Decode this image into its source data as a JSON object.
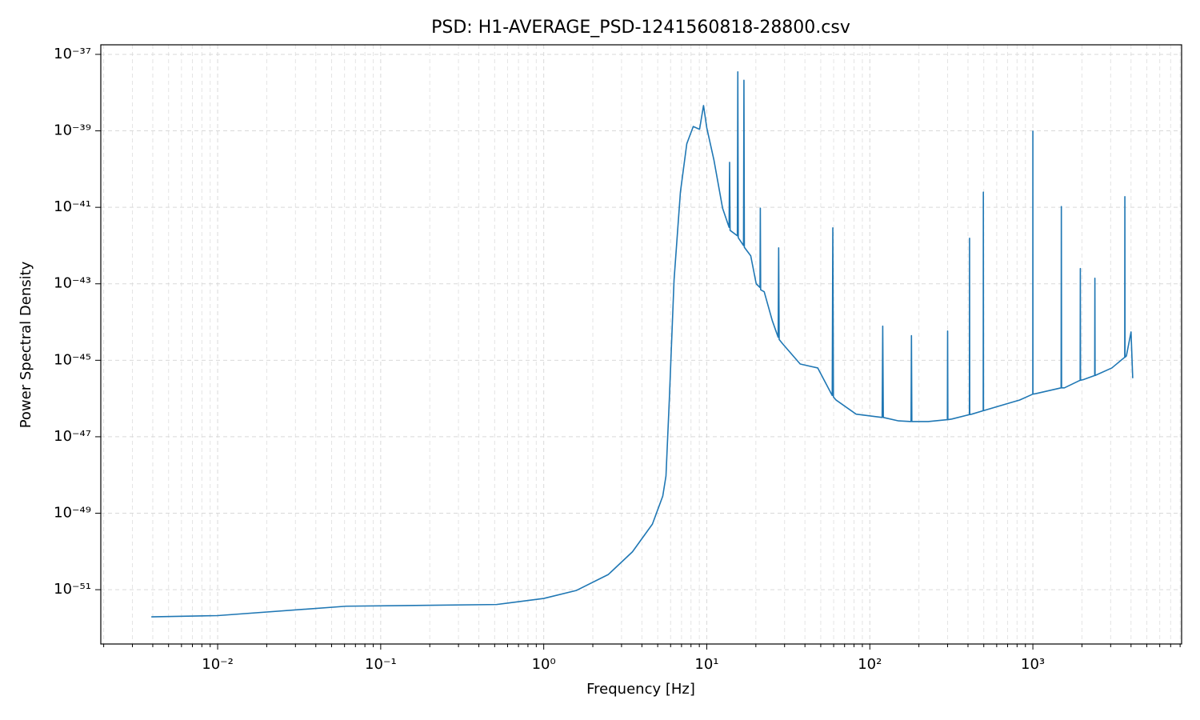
{
  "chart_data": {
    "type": "line",
    "title": "PSD: H1-AVERAGE_PSD-1241560818-28800.csv",
    "x_label": "Frequency [Hz]",
    "y_label": "Power Spectral Density",
    "x_scale": "log",
    "y_scale": "log",
    "grid": true,
    "x_minor_grid": true,
    "color": "#1f77b4",
    "xlim": [
      0.00192,
      8170
    ],
    "ylim": [
      3.8e-53,
      1.78e-37
    ],
    "xticks": [
      {
        "value": 0.01,
        "label": "10⁻²"
      },
      {
        "value": 0.1,
        "label": "10⁻¹"
      },
      {
        "value": 1,
        "label": "10⁰"
      },
      {
        "value": 10,
        "label": "10¹"
      },
      {
        "value": 100,
        "label": "10²"
      },
      {
        "value": 1000,
        "label": "10³"
      }
    ],
    "yticks": [
      {
        "value": 1e-51,
        "label": "10⁻⁵¹"
      },
      {
        "value": 1e-49,
        "label": "10⁻⁴⁹"
      },
      {
        "value": 1e-47,
        "label": "10⁻⁴⁷"
      },
      {
        "value": 1e-45,
        "label": "10⁻⁴⁵"
      },
      {
        "value": 1e-43,
        "label": "10⁻⁴³"
      },
      {
        "value": 1e-41,
        "label": "10⁻⁴¹"
      },
      {
        "value": 1e-39,
        "label": "10⁻³⁹"
      },
      {
        "value": 1e-37,
        "label": "10⁻³⁷"
      }
    ],
    "x": [
      0.00392,
      0.01,
      0.0615,
      0.514,
      1,
      1.59,
      2.49,
      3.5,
      4.64,
      5.37,
      5.62,
      5.89,
      6.3,
      6.89,
      7.54,
      8.26,
      9.03,
      9.55,
      10,
      11.07,
      12.5,
      13.7,
      13.8,
      13.9,
      15.4,
      15.5,
      15.6,
      16.8,
      16.9,
      17.0,
      18.6,
      20.1,
      21.2,
      21.3,
      21.4,
      22.5,
      25.2,
      27.4,
      27.6,
      27.8,
      29.2,
      37.4,
      47.9,
      58.8,
      59.3,
      59.8,
      62.1,
      82.4,
      119,
      120,
      121,
      150,
      179,
      180,
      181,
      228,
      299,
      300,
      301,
      318,
      408,
      409,
      410,
      422,
      496,
      497,
      498,
      521,
      828,
      999,
      1000,
      1001,
      1048,
      1490,
      1495,
      1500,
      1561,
      1950,
      1955,
      1960,
      2033,
      2395,
      2401,
      2407,
      3051,
      3660,
      3667,
      3675,
      3747,
      4000,
      4096
    ],
    "values": [
      1.95e-52,
      2.1e-52,
      3.7e-52,
      4.1e-52,
      5.9e-52,
      9.6e-52,
      2.5e-51,
      9.8e-51,
      5.2e-50,
      2.8e-49,
      9.4e-49,
      9.1e-47,
      1.26e-43,
      2.5e-41,
      4.6e-40,
      1.3e-39,
      1.1e-39,
      4.6e-39,
      1.2e-39,
      1.7e-40,
      9.5e-42,
      3e-42,
      1.5e-40,
      2.5e-42,
      1.8e-42,
      3.5e-38,
      1.6e-42,
      1e-42,
      2.1e-38,
      9e-43,
      5.4e-43,
      1e-43,
      8e-44,
      9.5e-42,
      7e-44,
      6.2e-44,
      1.1e-44,
      4e-45,
      8.7e-43,
      3.5e-45,
      2.7e-45,
      8e-46,
      6.3e-46,
      1.2e-46,
      2.9e-42,
      1.1e-46,
      9.1e-47,
      3.9e-47,
      3.2e-47,
      7.8e-45,
      3.2e-47,
      2.6e-47,
      2.5e-47,
      4.4e-45,
      2.5e-47,
      2.5e-47,
      2.8e-47,
      5.8e-45,
      2.8e-47,
      2.9e-47,
      3.8e-47,
      1.55e-42,
      3.8e-47,
      3.9e-47,
      4.8e-47,
      2.5e-41,
      4.8e-47,
      5.1e-47,
      9.1e-47,
      1.3e-46,
      9.8e-40,
      1.3e-46,
      1.35e-46,
      1.9e-46,
      1.05e-41,
      1.9e-46,
      1.9e-46,
      3e-46,
      2.5e-43,
      3e-46,
      3.1e-46,
      4e-46,
      1.4e-43,
      4e-46,
      6.3e-46,
      1.2e-45,
      1.9e-41,
      1.2e-45,
      1.3e-45,
      5.5e-45,
      3.4e-46
    ]
  }
}
